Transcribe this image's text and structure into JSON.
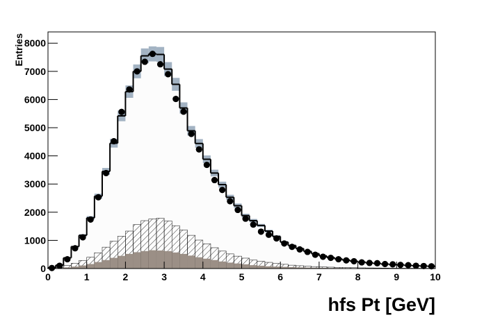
{
  "chart_data": {
    "type": "histogram",
    "x_label": "hfs Pt [GeV]",
    "y_label": "Entries",
    "bins": [
      0,
      0.2,
      0.4,
      0.6,
      0.8,
      1,
      1.2,
      1.4,
      1.6,
      1.8,
      2,
      2.2,
      2.4,
      2.6,
      2.8,
      3,
      3.2,
      3.4,
      3.6,
      3.8,
      4,
      4.2,
      4.4,
      4.6,
      4.8,
      5,
      5.2,
      5.4,
      5.6,
      5.8,
      6,
      6.2,
      6.4,
      6.6,
      6.8,
      7,
      7.2,
      7.4,
      7.6,
      7.8,
      8,
      8.2,
      8.4,
      8.6,
      8.8,
      9,
      9.2,
      9.4,
      9.6,
      9.8,
      10
    ],
    "xlim": [
      0,
      10
    ],
    "xticks": [
      0,
      1,
      2,
      3,
      4,
      5,
      6,
      7,
      8,
      9,
      10
    ],
    "ylim": [
      0,
      8400
    ],
    "yticks": [
      0,
      1000,
      2000,
      3000,
      4000,
      5000,
      6000,
      7000,
      8000
    ],
    "series": [
      {
        "style": "step",
        "color": "#000000",
        "fill": "#fcfcfc",
        "error_color": "#a3b3c3",
        "values": [
          30,
          120,
          380,
          780,
          1180,
          1800,
          2570,
          3450,
          4450,
          5420,
          6280,
          7000,
          7550,
          7620,
          7600,
          7080,
          6540,
          5700,
          4890,
          4440,
          3880,
          3390,
          2980,
          2530,
          2230,
          1880,
          1700,
          1530,
          1330,
          1140,
          940,
          820,
          710,
          610,
          530,
          450,
          390,
          340,
          300,
          260,
          230,
          200,
          180,
          160,
          140,
          130,
          110,
          100,
          90,
          80
        ],
        "errors": [
          1,
          4,
          13,
          27,
          41,
          63,
          90,
          121,
          156,
          190,
          220,
          245,
          264,
          267,
          266,
          248,
          229,
          200,
          171,
          155,
          136,
          119,
          104,
          89,
          78,
          66,
          60,
          54,
          47,
          40,
          33,
          29,
          25,
          21,
          19,
          16,
          14,
          12,
          11,
          9,
          8,
          7,
          6,
          6,
          5,
          5,
          4,
          4,
          3,
          3
        ]
      },
      {
        "style": "hatched",
        "color": "#000000",
        "values": [
          10,
          40,
          110,
          190,
          290,
          400,
          560,
          760,
          970,
          1150,
          1330,
          1560,
          1700,
          1760,
          1790,
          1690,
          1520,
          1370,
          1180,
          1010,
          880,
          740,
          620,
          520,
          440,
          370,
          300,
          260,
          220,
          180,
          150,
          120,
          100,
          80,
          70,
          60,
          50,
          40,
          35,
          30,
          25,
          22,
          20,
          18,
          15,
          14,
          12,
          11,
          10,
          9
        ]
      },
      {
        "style": "filled",
        "color": "#9b8f86",
        "values": [
          5,
          15,
          40,
          70,
          110,
          160,
          230,
          300,
          380,
          450,
          520,
          580,
          620,
          650,
          640,
          620,
          570,
          520,
          460,
          400,
          350,
          300,
          250,
          210,
          180,
          150,
          120,
          100,
          80,
          70,
          60,
          50,
          40,
          35,
          30,
          25,
          20,
          18,
          15,
          12,
          10,
          9,
          8,
          7,
          6,
          5,
          5,
          4,
          4,
          3
        ]
      },
      {
        "style": "points",
        "color": "#000000",
        "values": [
          20,
          100,
          330,
          720,
          1110,
          1740,
          2530,
          3390,
          4520,
          5560,
          6360,
          7000,
          7340,
          7620,
          7250,
          6900,
          6020,
          5570,
          4780,
          4230,
          3680,
          3140,
          2790,
          2390,
          2080,
          1770,
          1560,
          1310,
          1200,
          1070,
          890,
          770,
          680,
          590,
          490,
          420,
          380,
          330,
          290,
          260,
          220,
          200,
          190,
          160,
          150,
          130,
          120,
          100,
          90,
          80
        ]
      }
    ]
  }
}
